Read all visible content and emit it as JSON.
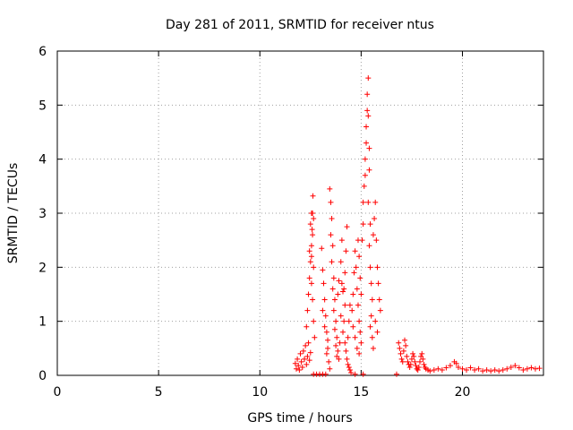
{
  "chart_data": {
    "type": "scatter",
    "title": "Day 281 of 2011, SRMTID for receiver ntus",
    "xlabel": "GPS time / hours",
    "ylabel": "SRMTID / TECUs",
    "xlim": [
      0,
      24
    ],
    "ylim": [
      0,
      6
    ],
    "x_ticks": [
      "0",
      "5",
      "10",
      "15",
      "20"
    ],
    "y_ticks": [
      "0",
      "1",
      "2",
      "3",
      "4",
      "5",
      "6"
    ],
    "grid": true,
    "marker": "+",
    "color": "#ff0000",
    "series": [
      {
        "name": "ntus",
        "points": [
          [
            11.75,
            0.22
          ],
          [
            11.8,
            0.12
          ],
          [
            11.85,
            0.3
          ],
          [
            11.9,
            0.18
          ],
          [
            11.95,
            0.1
          ],
          [
            12.0,
            0.4
          ],
          [
            12.05,
            0.25
          ],
          [
            12.1,
            0.15
          ],
          [
            12.15,
            0.45
          ],
          [
            12.2,
            0.3
          ],
          [
            12.25,
            0.55
          ],
          [
            12.3,
            0.2
          ],
          [
            12.35,
            0.35
          ],
          [
            12.4,
            0.6
          ],
          [
            12.45,
            0.28
          ],
          [
            12.5,
            0.42
          ],
          [
            12.3,
            0.9
          ],
          [
            12.35,
            1.2
          ],
          [
            12.4,
            1.5
          ],
          [
            12.45,
            1.8
          ],
          [
            12.5,
            2.1
          ],
          [
            12.55,
            2.4
          ],
          [
            12.58,
            2.7
          ],
          [
            12.6,
            3.0
          ],
          [
            12.62,
            3.32
          ],
          [
            12.55,
            3.0
          ],
          [
            12.65,
            2.9
          ],
          [
            12.5,
            2.8
          ],
          [
            12.6,
            2.6
          ],
          [
            12.45,
            2.3
          ],
          [
            12.55,
            2.2
          ],
          [
            12.65,
            2.0
          ],
          [
            12.55,
            1.7
          ],
          [
            12.6,
            1.4
          ],
          [
            12.65,
            1.0
          ],
          [
            12.7,
            0.7
          ],
          [
            12.65,
            0.02
          ],
          [
            12.8,
            0.02
          ],
          [
            12.95,
            0.02
          ],
          [
            13.1,
            0.02
          ],
          [
            13.25,
            0.02
          ],
          [
            13.05,
            2.35
          ],
          [
            13.1,
            1.95
          ],
          [
            13.15,
            1.7
          ],
          [
            13.2,
            1.4
          ],
          [
            13.25,
            1.1
          ],
          [
            13.3,
            0.8
          ],
          [
            13.35,
            0.5
          ],
          [
            13.4,
            0.25
          ],
          [
            13.45,
            0.12
          ],
          [
            13.1,
            1.2
          ],
          [
            13.2,
            0.9
          ],
          [
            13.3,
            0.4
          ],
          [
            13.35,
            0.65
          ],
          [
            13.45,
            3.45
          ],
          [
            13.5,
            3.2
          ],
          [
            13.55,
            2.9
          ],
          [
            13.5,
            2.6
          ],
          [
            13.6,
            2.4
          ],
          [
            13.55,
            2.1
          ],
          [
            13.65,
            1.8
          ],
          [
            13.6,
            1.6
          ],
          [
            13.7,
            1.4
          ],
          [
            13.65,
            1.2
          ],
          [
            13.75,
            1.0
          ],
          [
            13.7,
            0.85
          ],
          [
            13.8,
            0.7
          ],
          [
            13.75,
            0.55
          ],
          [
            13.85,
            0.45
          ],
          [
            13.8,
            0.35
          ],
          [
            13.9,
            0.3
          ],
          [
            13.95,
            0.6
          ],
          [
            14.0,
            1.1
          ],
          [
            13.85,
            1.5
          ],
          [
            13.9,
            1.75
          ],
          [
            14.0,
            2.1
          ],
          [
            14.05,
            2.5
          ],
          [
            14.05,
            1.7
          ],
          [
            14.1,
            1.55
          ],
          [
            14.15,
            1.6
          ],
          [
            14.2,
            1.9
          ],
          [
            14.25,
            2.3
          ],
          [
            14.3,
            2.75
          ],
          [
            14.2,
            1.3
          ],
          [
            14.15,
            1.0
          ],
          [
            14.1,
            0.8
          ],
          [
            14.2,
            0.6
          ],
          [
            14.25,
            0.45
          ],
          [
            14.3,
            0.3
          ],
          [
            14.35,
            0.2
          ],
          [
            14.4,
            0.15
          ],
          [
            14.45,
            0.1
          ],
          [
            14.5,
            0.05
          ],
          [
            14.35,
            0.7
          ],
          [
            14.4,
            1.0
          ],
          [
            14.45,
            1.3
          ],
          [
            14.55,
            1.2
          ],
          [
            14.6,
            1.5
          ],
          [
            14.65,
            1.9
          ],
          [
            14.7,
            2.3
          ],
          [
            14.75,
            2.0
          ],
          [
            14.8,
            1.6
          ],
          [
            14.85,
            1.3
          ],
          [
            14.9,
            1.0
          ],
          [
            14.95,
            0.8
          ],
          [
            15.0,
            0.6
          ],
          [
            14.85,
            2.5
          ],
          [
            14.9,
            2.2
          ],
          [
            14.95,
            1.8
          ],
          [
            15.0,
            1.5
          ],
          [
            14.6,
            0.9
          ],
          [
            14.7,
            0.7
          ],
          [
            14.8,
            0.5
          ],
          [
            14.9,
            0.4
          ],
          [
            15.05,
            2.5
          ],
          [
            15.1,
            2.8
          ],
          [
            15.1,
            3.2
          ],
          [
            15.15,
            3.5
          ],
          [
            15.2,
            3.7
          ],
          [
            15.2,
            4.0
          ],
          [
            15.25,
            4.3
          ],
          [
            15.25,
            4.6
          ],
          [
            15.3,
            4.9
          ],
          [
            15.3,
            5.2
          ],
          [
            15.35,
            5.5
          ],
          [
            15.35,
            4.8
          ],
          [
            15.4,
            4.2
          ],
          [
            15.4,
            3.8
          ],
          [
            15.35,
            3.2
          ],
          [
            15.45,
            2.8
          ],
          [
            15.4,
            2.4
          ],
          [
            15.45,
            2.0
          ],
          [
            15.5,
            1.7
          ],
          [
            15.55,
            1.4
          ],
          [
            15.5,
            1.1
          ],
          [
            15.45,
            0.9
          ],
          [
            15.55,
            0.7
          ],
          [
            15.6,
            0.5
          ],
          [
            15.6,
            2.6
          ],
          [
            15.65,
            2.9
          ],
          [
            15.7,
            3.2
          ],
          [
            15.75,
            2.5
          ],
          [
            15.8,
            2.0
          ],
          [
            15.85,
            1.7
          ],
          [
            15.9,
            1.4
          ],
          [
            15.95,
            1.2
          ],
          [
            15.7,
            1.0
          ],
          [
            15.8,
            0.8
          ],
          [
            14.7,
            0.02
          ],
          [
            15.1,
            0.02
          ],
          [
            16.75,
            0.02
          ],
          [
            16.85,
            0.6
          ],
          [
            16.9,
            0.5
          ],
          [
            16.95,
            0.4
          ],
          [
            17.0,
            0.3
          ],
          [
            17.05,
            0.25
          ],
          [
            17.1,
            0.45
          ],
          [
            17.15,
            0.65
          ],
          [
            17.2,
            0.55
          ],
          [
            17.25,
            0.35
          ],
          [
            17.3,
            0.25
          ],
          [
            17.35,
            0.2
          ],
          [
            17.4,
            0.15
          ],
          [
            17.45,
            0.2
          ],
          [
            17.5,
            0.3
          ],
          [
            17.55,
            0.4
          ],
          [
            17.6,
            0.35
          ],
          [
            17.65,
            0.25
          ],
          [
            17.7,
            0.18
          ],
          [
            17.75,
            0.12
          ],
          [
            17.8,
            0.1
          ],
          [
            17.85,
            0.15
          ],
          [
            17.9,
            0.25
          ],
          [
            17.95,
            0.35
          ],
          [
            18.0,
            0.4
          ],
          [
            18.05,
            0.3
          ],
          [
            18.1,
            0.2
          ],
          [
            18.15,
            0.15
          ],
          [
            18.2,
            0.12
          ],
          [
            18.3,
            0.1
          ],
          [
            18.4,
            0.08
          ],
          [
            18.6,
            0.1
          ],
          [
            18.8,
            0.12
          ],
          [
            19.0,
            0.1
          ],
          [
            19.2,
            0.14
          ],
          [
            19.4,
            0.18
          ],
          [
            19.6,
            0.25
          ],
          [
            19.7,
            0.22
          ],
          [
            19.8,
            0.15
          ],
          [
            20.0,
            0.12
          ],
          [
            20.2,
            0.1
          ],
          [
            20.4,
            0.14
          ],
          [
            20.6,
            0.1
          ],
          [
            20.8,
            0.12
          ],
          [
            21.0,
            0.08
          ],
          [
            21.2,
            0.1
          ],
          [
            21.4,
            0.08
          ],
          [
            21.6,
            0.1
          ],
          [
            21.8,
            0.08
          ],
          [
            22.0,
            0.1
          ],
          [
            22.2,
            0.12
          ],
          [
            22.4,
            0.15
          ],
          [
            22.6,
            0.18
          ],
          [
            22.8,
            0.14
          ],
          [
            23.0,
            0.1
          ],
          [
            23.2,
            0.12
          ],
          [
            23.4,
            0.14
          ],
          [
            23.6,
            0.12
          ],
          [
            23.8,
            0.13
          ]
        ]
      }
    ]
  }
}
